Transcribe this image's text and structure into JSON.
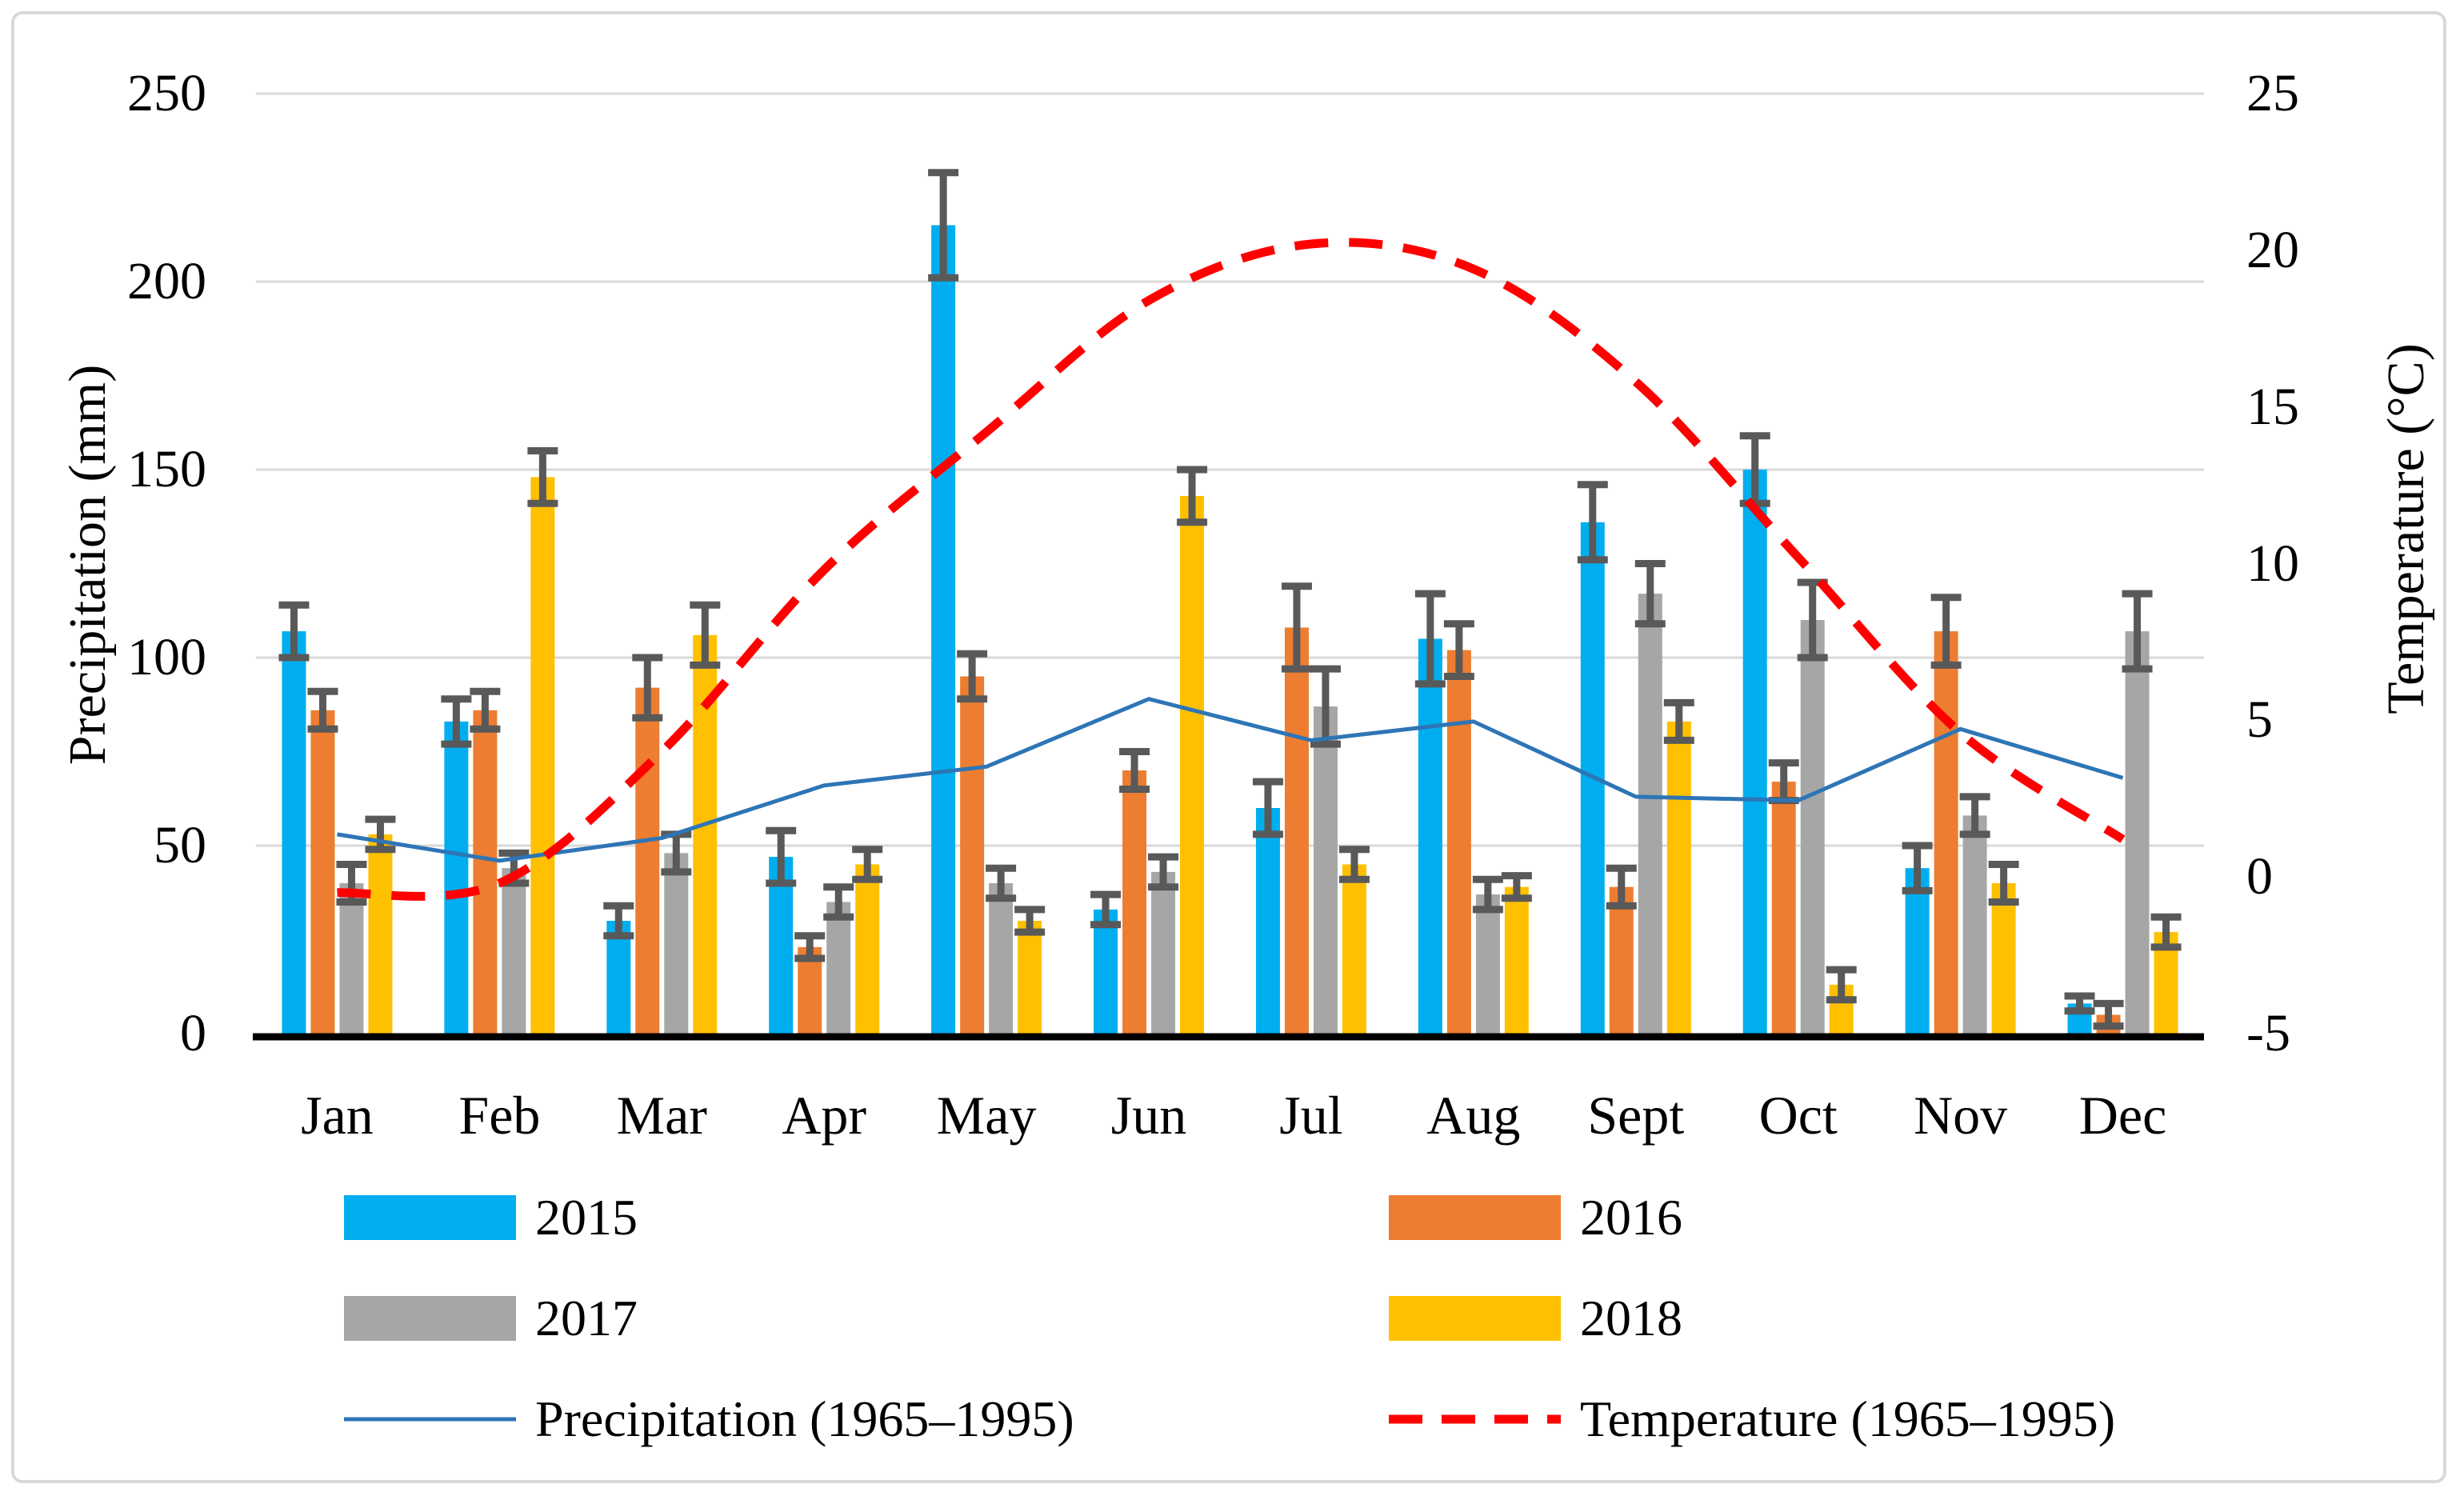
{
  "chart_data": {
    "type": "bar",
    "subtype": "grouped-bars-with-lines",
    "title": "",
    "categories": [
      "Jan",
      "Feb",
      "Mar",
      "Apr",
      "May",
      "Jun",
      "Jul",
      "Aug",
      "Sept",
      "Oct",
      "Nov",
      "Dec"
    ],
    "series": [
      {
        "name": "2015",
        "color": "#00AEEF",
        "values": [
          107,
          83,
          30,
          47,
          215,
          33,
          60,
          105,
          136,
          150,
          44,
          8
        ],
        "errors": [
          7,
          6,
          4,
          7,
          14,
          4,
          7,
          12,
          10,
          9,
          6,
          2
        ]
      },
      {
        "name": "2016",
        "color": "#ED7D31",
        "values": [
          86,
          86,
          92,
          23,
          95,
          70,
          108,
          102,
          39,
          67,
          107,
          5
        ],
        "errors": [
          5,
          5,
          8,
          3,
          6,
          5,
          11,
          7,
          5,
          5,
          9,
          3
        ]
      },
      {
        "name": "2017",
        "color": "#A6A6A6",
        "values": [
          40,
          44,
          48,
          35,
          40,
          43,
          87,
          37,
          117,
          110,
          58,
          107
        ],
        "errors": [
          5,
          4,
          5,
          4,
          4,
          4,
          10,
          4,
          8,
          10,
          5,
          10
        ]
      },
      {
        "name": "2018",
        "color": "#FFC000",
        "values": [
          53,
          148,
          106,
          45,
          30,
          143,
          45,
          39,
          83,
          13,
          40,
          27
        ],
        "errors": [
          4,
          7,
          8,
          4,
          3,
          7,
          4,
          3,
          5,
          4,
          5,
          4
        ]
      }
    ],
    "lines": [
      {
        "name": "Precipitation (1965–1995)",
        "color": "#2E75B6",
        "style": "solid",
        "axis": "left",
        "values": [
          53,
          46,
          52,
          66,
          71,
          89,
          78,
          83,
          63,
          62,
          81,
          68
        ]
      },
      {
        "name": "Temperature (1965–1995)",
        "color": "#FF0000",
        "style": "dashed",
        "axis": "right",
        "values": [
          -0.5,
          -0.2,
          4.0,
          9.8,
          14.2,
          18.4,
          20.2,
          19.4,
          15.8,
          10.2,
          4.6,
          1.2
        ]
      }
    ],
    "left_axis": {
      "title": "Precipitation (mm)",
      "min": 0,
      "max": 250,
      "ticks": [
        0,
        50,
        100,
        150,
        200,
        250
      ]
    },
    "right_axis": {
      "title": "Temperature (°C)",
      "min": -5,
      "max": 25,
      "ticks": [
        -5,
        0,
        5,
        10,
        15,
        20,
        25
      ]
    },
    "error_bar_color": "#595959",
    "grid_color": "#D9D9D9",
    "axis_line_color": "#000000",
    "grid": "on",
    "legend_position": "bottom"
  }
}
